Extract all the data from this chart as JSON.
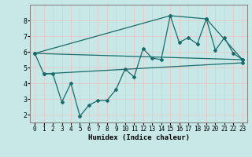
{
  "background_color": "#c8e8e8",
  "grid_color": "#e8c8c8",
  "line_color": "#1a6b6b",
  "line1_x": [
    0,
    1,
    2,
    3,
    4,
    5,
    6,
    7,
    8,
    9,
    10,
    11,
    12,
    13,
    14,
    15,
    16,
    17,
    18,
    19,
    20,
    21,
    22,
    23
  ],
  "line1_y": [
    5.9,
    4.6,
    4.6,
    2.8,
    4.0,
    1.9,
    2.6,
    2.9,
    2.9,
    3.6,
    4.9,
    4.4,
    6.2,
    5.6,
    5.5,
    8.3,
    6.6,
    6.9,
    6.5,
    8.1,
    6.1,
    6.9,
    5.9,
    5.5
  ],
  "line2_x": [
    0,
    23
  ],
  "line2_y": [
    5.9,
    5.5
  ],
  "line3_x": [
    1,
    23
  ],
  "line3_y": [
    4.6,
    5.3
  ],
  "line4_x": [
    0,
    15,
    19,
    23
  ],
  "line4_y": [
    5.9,
    8.3,
    8.1,
    5.5
  ],
  "xlabel": "Humidex (Indice chaleur)",
  "xlim": [
    -0.5,
    23.5
  ],
  "ylim": [
    1.5,
    9.0
  ],
  "yticks": [
    2,
    3,
    4,
    5,
    6,
    7,
    8
  ],
  "xticks": [
    0,
    1,
    2,
    3,
    4,
    5,
    6,
    7,
    8,
    9,
    10,
    11,
    12,
    13,
    14,
    15,
    16,
    17,
    18,
    19,
    20,
    21,
    22,
    23
  ],
  "marker": "D",
  "markersize": 2.0,
  "linewidth": 0.9,
  "xlabel_fontsize": 6.5,
  "tick_fontsize": 5.5,
  "fig_width": 3.2,
  "fig_height": 2.0,
  "dpi": 100
}
